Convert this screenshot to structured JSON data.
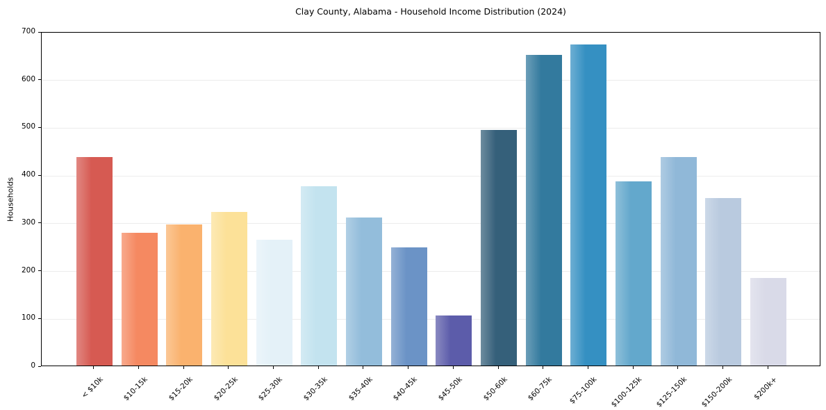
{
  "chart_data": {
    "type": "bar",
    "title": "Clay County, Alabama - Household Income Distribution (2024)",
    "xlabel": "",
    "ylabel": "Households",
    "categories": [
      "< $10k",
      "$10-15k",
      "$15-20k",
      "$20-25k",
      "$25-30k",
      "$30-35k",
      "$35-40k",
      "$40-45k",
      "$45-50k",
      "$50-60k",
      "$60-75k",
      "$75-100k",
      "$100-125k",
      "$125-150k",
      "$150-200k",
      "$200k+"
    ],
    "values": [
      437,
      278,
      295,
      321,
      263,
      376,
      310,
      248,
      105,
      493,
      651,
      673,
      385,
      437,
      351,
      183
    ],
    "bar_colors": [
      "#d65a52",
      "#f58961",
      "#fab26e",
      "#fce198",
      "#e4f1f8",
      "#c3e3ef",
      "#93bddb",
      "#6b93c6",
      "#5c5caa",
      "#35607a",
      "#337a9e",
      "#3590c2",
      "#63a8cc",
      "#90b8d8",
      "#b9cadf",
      "#d9dae8"
    ],
    "ylim": [
      0,
      700
    ],
    "yticks": [
      0,
      100,
      200,
      300,
      400,
      500,
      600,
      700
    ],
    "grid": "horizontal",
    "legend": "none",
    "background": "#ffffff",
    "axis_color": "#000000",
    "grid_color": "#ececec"
  }
}
